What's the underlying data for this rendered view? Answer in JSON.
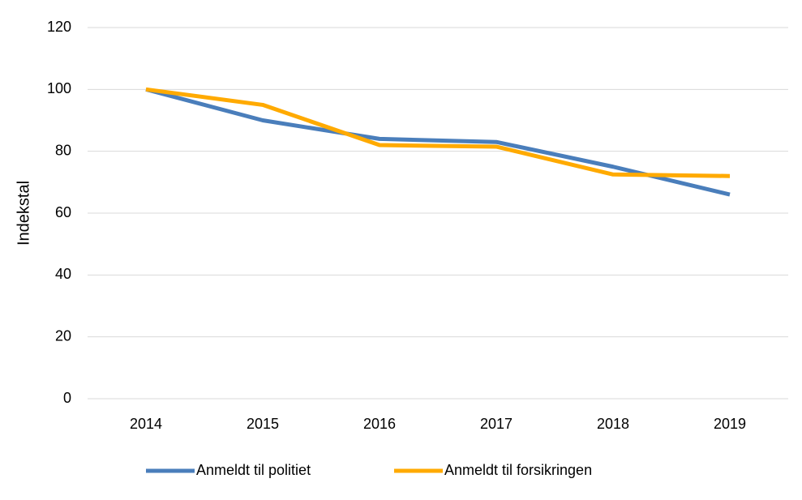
{
  "chart_data": {
    "type": "line",
    "ylabel": "Indekstal",
    "categories": [
      "2014",
      "2015",
      "2016",
      "2017",
      "2018",
      "2019"
    ],
    "series": [
      {
        "name": "Anmeldt til politiet",
        "color": "#4a7ebb",
        "values": [
          100,
          90,
          84,
          83,
          75,
          66
        ]
      },
      {
        "name": "Anmeldt til forsikringen",
        "color": "#ffaa00",
        "values": [
          100,
          95,
          82,
          81.5,
          72.5,
          72
        ]
      }
    ],
    "ylim": [
      0,
      120
    ],
    "yticks": [
      0,
      20,
      40,
      60,
      80,
      100,
      120
    ],
    "grid": true,
    "legend": "bottom"
  }
}
